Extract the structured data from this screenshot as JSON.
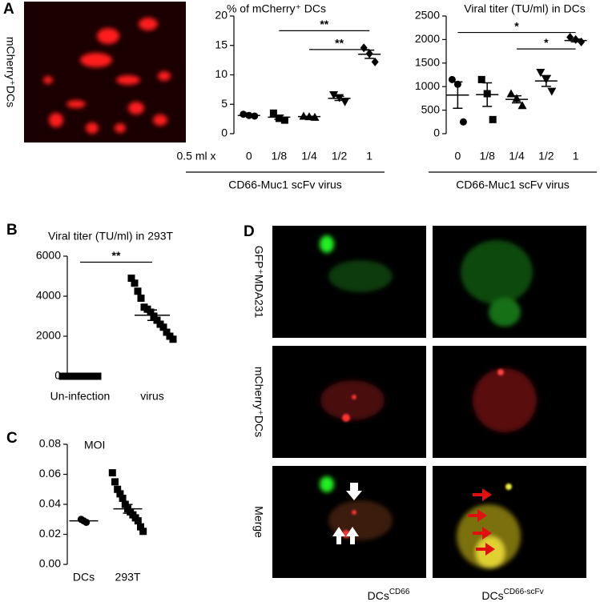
{
  "panel_letters": [
    "A",
    "B",
    "C",
    "D"
  ],
  "image_labels": {
    "a": "mCherry⁺DCs",
    "d_rows": [
      "GFP⁺MDA231",
      "mCherry⁺DCs",
      "Merge"
    ],
    "d_cols": [
      {
        "text": "DCs",
        "sup": "CD66"
      },
      {
        "text": "DCs",
        "sup": "CD66-scFv"
      }
    ]
  },
  "chart_data": [
    {
      "type": "dot",
      "title": "% of mCherry⁺ DCs",
      "x_prefix": "0.5 ml x",
      "x_group_label": "CD66-Muc1 scFv virus",
      "categories": [
        "0",
        "1/8",
        "1/4",
        "1/2",
        "1"
      ],
      "markers": [
        "circle",
        "square",
        "triangle",
        "triangle-down",
        "diamond"
      ],
      "color": "#000000",
      "points": [
        [
          3.3,
          3.1,
          3.0
        ],
        [
          3.5,
          2.6,
          2.3
        ],
        [
          3.0,
          2.9,
          2.8
        ],
        [
          6.6,
          6.1,
          5.4
        ],
        [
          14.6,
          13.6,
          12.2
        ]
      ],
      "means": [
        3.1,
        2.8,
        2.9,
        6.0,
        13.5
      ],
      "sems": [
        0.1,
        0.35,
        0.06,
        0.35,
        0.7
      ],
      "ylim": [
        0,
        20
      ],
      "yticks": [
        0,
        5,
        10,
        15,
        20
      ],
      "significance": [
        {
          "from": 1,
          "to": 4,
          "y": 17.5,
          "label": "**"
        },
        {
          "from": 2,
          "to": 4,
          "y": 14.3,
          "label": "**"
        }
      ]
    },
    {
      "type": "dot",
      "title": "Viral titer (TU/ml) in DCs",
      "x_group_label": "CD66-Muc1 scFv virus",
      "categories": [
        "0",
        "1/8",
        "1/4",
        "1/2",
        "1"
      ],
      "markers": [
        "circle",
        "square",
        "triangle",
        "triangle-down",
        "diamond"
      ],
      "color": "#000000",
      "points": [
        [
          1150,
          1050,
          250
        ],
        [
          1150,
          850,
          300
        ],
        [
          850,
          750,
          600
        ],
        [
          1300,
          1150,
          900
        ],
        [
          2050,
          2000,
          1950
        ]
      ],
      "means": [
        820,
        830,
        730,
        1120,
        1980
      ],
      "sems": [
        280,
        250,
        75,
        115,
        30
      ],
      "ylim": [
        0,
        2500
      ],
      "yticks": [
        0,
        500,
        1000,
        1500,
        2000,
        2500
      ],
      "significance": [
        {
          "from": 0,
          "to": 4,
          "y": 2150,
          "label": "*"
        },
        {
          "from": 2,
          "to": 4,
          "y": 1800,
          "label": "*"
        }
      ]
    },
    {
      "type": "dot",
      "title": "Viral titer (TU/ml) in 293T",
      "categories": [
        "Un-infection",
        "virus"
      ],
      "markers": [
        "square",
        "square"
      ],
      "color": "#000000",
      "points": [
        [
          0,
          0,
          0,
          0,
          0,
          0,
          0,
          0,
          0,
          0,
          0,
          0
        ],
        [
          4900,
          4650,
          4250,
          3900,
          3450,
          3350,
          3200,
          3000,
          2800,
          2600,
          2450,
          2200,
          2000,
          1850
        ]
      ],
      "means": [
        0,
        3050
      ],
      "sems": [
        0,
        260
      ],
      "ylim": [
        0,
        6000
      ],
      "yticks": [
        0,
        2000,
        4000,
        6000
      ],
      "significance": [
        {
          "from": 0,
          "to": 1,
          "y": 5700,
          "label": "**"
        }
      ]
    },
    {
      "type": "dot",
      "title": "MOI",
      "categories": [
        "DCs",
        "293T"
      ],
      "markers": [
        "circle",
        "square"
      ],
      "color": "#000000",
      "points": [
        [
          0.03,
          0.029,
          0.028
        ],
        [
          0.061,
          0.055,
          0.05,
          0.047,
          0.044,
          0.04,
          0.037,
          0.035,
          0.033,
          0.031,
          0.029,
          0.025,
          0.022
        ]
      ],
      "means": [
        0.029,
        0.037
      ],
      "sems": [
        0.0006,
        0.0029
      ],
      "ylim": [
        0,
        0.08
      ],
      "yticks": [
        {
          "value": 0,
          "label": "0.00"
        },
        {
          "value": 0.02,
          "label": "0.02"
        },
        {
          "value": 0.04,
          "label": "0.04"
        },
        {
          "value": 0.06,
          "label": "0.06"
        },
        {
          "value": 0.08,
          "label": "0.08"
        }
      ]
    }
  ]
}
